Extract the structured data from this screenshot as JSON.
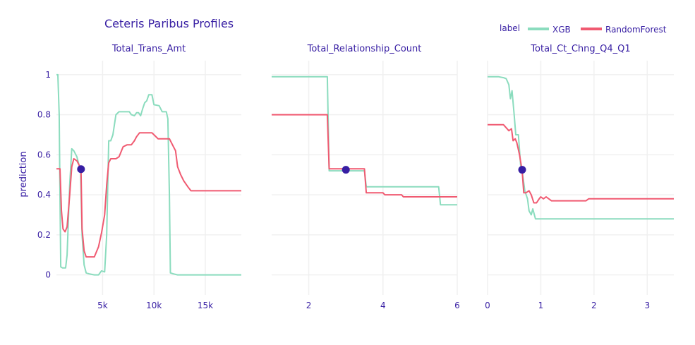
{
  "chart_data": {
    "type": "line",
    "title": "Ceteris Paribus Profiles",
    "ylabel": "prediction",
    "ylim": [
      -0.1,
      1.07
    ],
    "yticks": [
      0,
      0.2,
      0.4,
      0.6,
      0.8,
      1
    ],
    "ytick_labels": [
      "0",
      "0.2",
      "0.4",
      "0.6",
      "0.8",
      "1"
    ],
    "legend": {
      "title": "label",
      "position": "top-right",
      "entries": [
        {
          "name": "XGB",
          "color": "#8bdcbe"
        },
        {
          "name": "RandomForest",
          "color": "#f05a71"
        }
      ]
    },
    "observation_color": "#371ea3",
    "panels": [
      {
        "title": "Total_Trans_Amt",
        "xlim": [
          510,
          18500
        ],
        "xticks": [
          5000,
          10000,
          15000
        ],
        "xtick_labels": [
          "5k",
          "10k",
          "15k"
        ],
        "observation": {
          "x": 2900,
          "y": 0.528
        },
        "series": [
          {
            "name": "XGB",
            "points": [
              [
                510,
                1.0
              ],
              [
                650,
                1.0
              ],
              [
                780,
                0.8
              ],
              [
                850,
                0.4
              ],
              [
                930,
                0.04
              ],
              [
                1100,
                0.035
              ],
              [
                1400,
                0.035
              ],
              [
                1550,
                0.1
              ],
              [
                1800,
                0.45
              ],
              [
                2000,
                0.63
              ],
              [
                2200,
                0.62
              ],
              [
                2500,
                0.59
              ],
              [
                2700,
                0.55
              ],
              [
                2850,
                0.53
              ],
              [
                3000,
                0.2
              ],
              [
                3200,
                0.05
              ],
              [
                3400,
                0.01
              ],
              [
                3700,
                0.005
              ],
              [
                4200,
                0.0
              ],
              [
                4600,
                0.0
              ],
              [
                4900,
                0.02
              ],
              [
                5200,
                0.015
              ],
              [
                5400,
                0.2
              ],
              [
                5600,
                0.67
              ],
              [
                5800,
                0.67
              ],
              [
                6000,
                0.7
              ],
              [
                6300,
                0.8
              ],
              [
                6600,
                0.815
              ],
              [
                7000,
                0.815
              ],
              [
                7400,
                0.815
              ],
              [
                7600,
                0.815
              ],
              [
                7800,
                0.8
              ],
              [
                8100,
                0.795
              ],
              [
                8300,
                0.81
              ],
              [
                8500,
                0.81
              ],
              [
                8700,
                0.795
              ],
              [
                8900,
                0.83
              ],
              [
                9100,
                0.86
              ],
              [
                9300,
                0.87
              ],
              [
                9500,
                0.9
              ],
              [
                9800,
                0.9
              ],
              [
                10000,
                0.85
              ],
              [
                10500,
                0.845
              ],
              [
                10800,
                0.815
              ],
              [
                11200,
                0.815
              ],
              [
                11350,
                0.78
              ],
              [
                11500,
                0.4
              ],
              [
                11600,
                0.01
              ],
              [
                11900,
                0.005
              ],
              [
                12300,
                0.0
              ],
              [
                18500,
                0.0
              ]
            ]
          },
          {
            "name": "RandomForest",
            "points": [
              [
                510,
                0.53
              ],
              [
                850,
                0.53
              ],
              [
                1000,
                0.32
              ],
              [
                1150,
                0.23
              ],
              [
                1350,
                0.215
              ],
              [
                1550,
                0.24
              ],
              [
                1800,
                0.4
              ],
              [
                2000,
                0.54
              ],
              [
                2200,
                0.58
              ],
              [
                2500,
                0.57
              ],
              [
                2800,
                0.54
              ],
              [
                2900,
                0.528
              ],
              [
                3000,
                0.23
              ],
              [
                3200,
                0.12
              ],
              [
                3400,
                0.09
              ],
              [
                4200,
                0.09
              ],
              [
                4600,
                0.14
              ],
              [
                4900,
                0.21
              ],
              [
                5200,
                0.3
              ],
              [
                5400,
                0.45
              ],
              [
                5600,
                0.56
              ],
              [
                5800,
                0.58
              ],
              [
                6300,
                0.58
              ],
              [
                6600,
                0.59
              ],
              [
                7000,
                0.64
              ],
              [
                7400,
                0.65
              ],
              [
                7800,
                0.65
              ],
              [
                8100,
                0.67
              ],
              [
                8300,
                0.69
              ],
              [
                8600,
                0.71
              ],
              [
                9300,
                0.71
              ],
              [
                9800,
                0.71
              ],
              [
                10000,
                0.7
              ],
              [
                10400,
                0.68
              ],
              [
                10800,
                0.68
              ],
              [
                11500,
                0.68
              ],
              [
                11800,
                0.65
              ],
              [
                12100,
                0.62
              ],
              [
                12300,
                0.54
              ],
              [
                12600,
                0.5
              ],
              [
                12900,
                0.47
              ],
              [
                13300,
                0.44
              ],
              [
                13600,
                0.42
              ],
              [
                18500,
                0.42
              ]
            ]
          }
        ]
      },
      {
        "title": "Total_Relationship_Count",
        "xlim": [
          1,
          6
        ],
        "xticks": [
          2,
          4,
          6
        ],
        "xtick_labels": [
          "2",
          "4",
          "6"
        ],
        "observation": {
          "x": 3,
          "y": 0.525
        },
        "series": [
          {
            "name": "XGB",
            "points": [
              [
                1,
                0.99
              ],
              [
                2.5,
                0.99
              ],
              [
                2.55,
                0.52
              ],
              [
                3.5,
                0.52
              ],
              [
                3.55,
                0.44
              ],
              [
                5.5,
                0.44
              ],
              [
                5.55,
                0.35
              ],
              [
                6,
                0.35
              ]
            ]
          },
          {
            "name": "RandomForest",
            "points": [
              [
                1,
                0.8
              ],
              [
                2.5,
                0.8
              ],
              [
                2.55,
                0.53
              ],
              [
                3.5,
                0.53
              ],
              [
                3.55,
                0.41
              ],
              [
                4,
                0.41
              ],
              [
                4.05,
                0.4
              ],
              [
                4.5,
                0.4
              ],
              [
                4.55,
                0.39
              ],
              [
                6,
                0.39
              ]
            ]
          }
        ]
      },
      {
        "title": "Total_Ct_Chng_Q4_Q1",
        "xlim": [
          0,
          3.5
        ],
        "xticks": [
          0,
          1,
          2,
          3
        ],
        "xtick_labels": [
          "0",
          "1",
          "2",
          "3"
        ],
        "observation": {
          "x": 0.65,
          "y": 0.525
        },
        "series": [
          {
            "name": "XGB",
            "points": [
              [
                0,
                0.99
              ],
              [
                0.2,
                0.99
              ],
              [
                0.3,
                0.985
              ],
              [
                0.35,
                0.98
              ],
              [
                0.4,
                0.95
              ],
              [
                0.43,
                0.88
              ],
              [
                0.46,
                0.92
              ],
              [
                0.5,
                0.8
              ],
              [
                0.53,
                0.7
              ],
              [
                0.58,
                0.7
              ],
              [
                0.62,
                0.55
              ],
              [
                0.65,
                0.52
              ],
              [
                0.7,
                0.42
              ],
              [
                0.75,
                0.38
              ],
              [
                0.78,
                0.32
              ],
              [
                0.82,
                0.3
              ],
              [
                0.85,
                0.33
              ],
              [
                0.9,
                0.28
              ],
              [
                3.5,
                0.28
              ]
            ]
          },
          {
            "name": "RandomForest",
            "points": [
              [
                0,
                0.75
              ],
              [
                0.3,
                0.75
              ],
              [
                0.4,
                0.72
              ],
              [
                0.45,
                0.73
              ],
              [
                0.48,
                0.67
              ],
              [
                0.52,
                0.68
              ],
              [
                0.55,
                0.66
              ],
              [
                0.6,
                0.6
              ],
              [
                0.65,
                0.52
              ],
              [
                0.68,
                0.41
              ],
              [
                0.72,
                0.41
              ],
              [
                0.78,
                0.42
              ],
              [
                0.82,
                0.4
              ],
              [
                0.87,
                0.36
              ],
              [
                0.92,
                0.36
              ],
              [
                0.97,
                0.38
              ],
              [
                1.0,
                0.39
              ],
              [
                1.05,
                0.38
              ],
              [
                1.1,
                0.39
              ],
              [
                1.2,
                0.37
              ],
              [
                1.3,
                0.37
              ],
              [
                1.85,
                0.37
              ],
              [
                1.9,
                0.38
              ],
              [
                3.5,
                0.38
              ]
            ]
          }
        ]
      }
    ]
  }
}
